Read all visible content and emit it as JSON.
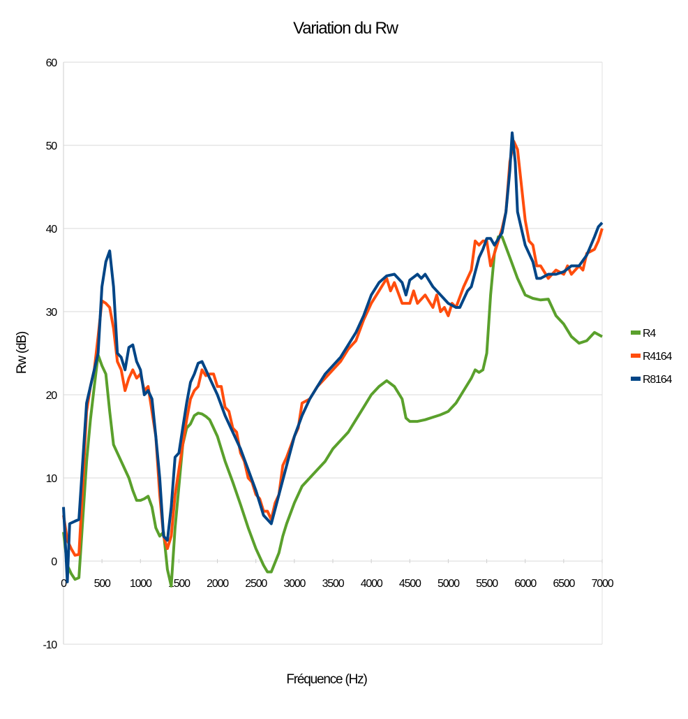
{
  "chart_data": {
    "type": "line",
    "title": "Variation du Rw",
    "xlabel": "Fréquence (Hz)",
    "ylabel": "Rw (dB)",
    "xlim": [
      0,
      7000
    ],
    "ylim": [
      -10,
      60
    ],
    "xticks": [
      0,
      500,
      1000,
      1500,
      2000,
      2500,
      3000,
      3500,
      4000,
      4500,
      5000,
      5500,
      6000,
      6500,
      7000
    ],
    "yticks": [
      -10,
      0,
      10,
      20,
      30,
      40,
      50,
      60
    ],
    "grid": "horizontal",
    "legend_position": "right",
    "series": [
      {
        "name": "R4",
        "color": "#5aa02c",
        "points": [
          [
            0,
            3.5
          ],
          [
            50,
            -0.5
          ],
          [
            100,
            -1.5
          ],
          [
            150,
            -2.2
          ],
          [
            200,
            -2.0
          ],
          [
            250,
            5
          ],
          [
            300,
            12
          ],
          [
            350,
            17
          ],
          [
            400,
            21
          ],
          [
            450,
            24.8
          ],
          [
            500,
            23.5
          ],
          [
            550,
            22.5
          ],
          [
            600,
            18
          ],
          [
            650,
            14
          ],
          [
            700,
            13
          ],
          [
            750,
            12
          ],
          [
            800,
            11
          ],
          [
            850,
            10
          ],
          [
            900,
            8.5
          ],
          [
            950,
            7.3
          ],
          [
            1000,
            7.3
          ],
          [
            1050,
            7.5
          ],
          [
            1100,
            7.8
          ],
          [
            1150,
            6.5
          ],
          [
            1200,
            4
          ],
          [
            1250,
            3
          ],
          [
            1300,
            3.5
          ],
          [
            1350,
            -1
          ],
          [
            1400,
            -3
          ],
          [
            1450,
            4
          ],
          [
            1500,
            9
          ],
          [
            1550,
            14
          ],
          [
            1600,
            16
          ],
          [
            1650,
            16.5
          ],
          [
            1700,
            17.5
          ],
          [
            1750,
            17.8
          ],
          [
            1800,
            17.7
          ],
          [
            1850,
            17.4
          ],
          [
            1900,
            17
          ],
          [
            1950,
            16
          ],
          [
            2000,
            15
          ],
          [
            2100,
            12
          ],
          [
            2200,
            9.5
          ],
          [
            2300,
            6.8
          ],
          [
            2400,
            4
          ],
          [
            2500,
            1.5
          ],
          [
            2600,
            -0.5
          ],
          [
            2650,
            -1.3
          ],
          [
            2700,
            -1.3
          ],
          [
            2800,
            1
          ],
          [
            2850,
            3
          ],
          [
            2900,
            4.5
          ],
          [
            3000,
            7
          ],
          [
            3100,
            9
          ],
          [
            3200,
            10
          ],
          [
            3300,
            11
          ],
          [
            3400,
            12
          ],
          [
            3500,
            13.5
          ],
          [
            3600,
            14.5
          ],
          [
            3700,
            15.5
          ],
          [
            3800,
            17
          ],
          [
            3900,
            18.5
          ],
          [
            4000,
            20
          ],
          [
            4100,
            21
          ],
          [
            4200,
            21.7
          ],
          [
            4300,
            21
          ],
          [
            4400,
            19.5
          ],
          [
            4450,
            17.2
          ],
          [
            4500,
            16.8
          ],
          [
            4600,
            16.8
          ],
          [
            4700,
            17
          ],
          [
            4800,
            17.3
          ],
          [
            4900,
            17.6
          ],
          [
            5000,
            18
          ],
          [
            5100,
            19
          ],
          [
            5200,
            20.5
          ],
          [
            5300,
            22
          ],
          [
            5350,
            23
          ],
          [
            5400,
            22.7
          ],
          [
            5450,
            23
          ],
          [
            5500,
            25
          ],
          [
            5550,
            32
          ],
          [
            5600,
            37
          ],
          [
            5650,
            39
          ],
          [
            5700,
            39
          ],
          [
            5800,
            36.5
          ],
          [
            5900,
            34
          ],
          [
            6000,
            32
          ],
          [
            6100,
            31.6
          ],
          [
            6200,
            31.4
          ],
          [
            6300,
            31.5
          ],
          [
            6400,
            29.5
          ],
          [
            6500,
            28.5
          ],
          [
            6600,
            27
          ],
          [
            6700,
            26.2
          ],
          [
            6800,
            26.5
          ],
          [
            6900,
            27.5
          ],
          [
            7000,
            27
          ]
        ]
      },
      {
        "name": "R4164",
        "color": "#ff4d0d",
        "points": [
          [
            0,
            5.5
          ],
          [
            50,
            2.5
          ],
          [
            100,
            1.5
          ],
          [
            150,
            0.7
          ],
          [
            200,
            0.8
          ],
          [
            250,
            9
          ],
          [
            300,
            18
          ],
          [
            350,
            21
          ],
          [
            400,
            23
          ],
          [
            450,
            27
          ],
          [
            500,
            31.3
          ],
          [
            550,
            31
          ],
          [
            600,
            30.5
          ],
          [
            650,
            28
          ],
          [
            700,
            24
          ],
          [
            750,
            23
          ],
          [
            800,
            20.5
          ],
          [
            850,
            22
          ],
          [
            900,
            23
          ],
          [
            950,
            22
          ],
          [
            1000,
            22.5
          ],
          [
            1050,
            20.5
          ],
          [
            1100,
            21
          ],
          [
            1150,
            18
          ],
          [
            1200,
            15
          ],
          [
            1250,
            8
          ],
          [
            1300,
            3
          ],
          [
            1350,
            1.5
          ],
          [
            1400,
            3
          ],
          [
            1450,
            8
          ],
          [
            1500,
            11
          ],
          [
            1550,
            14
          ],
          [
            1600,
            17
          ],
          [
            1650,
            19.5
          ],
          [
            1700,
            20.5
          ],
          [
            1750,
            21
          ],
          [
            1800,
            23
          ],
          [
            1850,
            22.3
          ],
          [
            1900,
            22.5
          ],
          [
            1950,
            22.5
          ],
          [
            2000,
            21
          ],
          [
            2050,
            21
          ],
          [
            2100,
            18.5
          ],
          [
            2150,
            18
          ],
          [
            2200,
            16
          ],
          [
            2250,
            15.5
          ],
          [
            2300,
            13
          ],
          [
            2350,
            12
          ],
          [
            2400,
            10
          ],
          [
            2450,
            9.5
          ],
          [
            2500,
            8
          ],
          [
            2550,
            7.5
          ],
          [
            2600,
            6
          ],
          [
            2650,
            6
          ],
          [
            2700,
            5
          ],
          [
            2750,
            7
          ],
          [
            2800,
            8
          ],
          [
            2850,
            11.5
          ],
          [
            2900,
            12.5
          ],
          [
            3000,
            15
          ],
          [
            3050,
            16
          ],
          [
            3100,
            19
          ],
          [
            3200,
            19.5
          ],
          [
            3300,
            21
          ],
          [
            3400,
            22
          ],
          [
            3500,
            23
          ],
          [
            3600,
            24
          ],
          [
            3700,
            25.5
          ],
          [
            3800,
            26.5
          ],
          [
            3900,
            29
          ],
          [
            4000,
            31
          ],
          [
            4100,
            32.5
          ],
          [
            4200,
            34
          ],
          [
            4250,
            32.5
          ],
          [
            4300,
            33.5
          ],
          [
            4400,
            31
          ],
          [
            4500,
            31
          ],
          [
            4550,
            32.5
          ],
          [
            4600,
            31
          ],
          [
            4700,
            32
          ],
          [
            4800,
            30.5
          ],
          [
            4850,
            32
          ],
          [
            4900,
            30
          ],
          [
            4950,
            30.5
          ],
          [
            5000,
            29.5
          ],
          [
            5050,
            31
          ],
          [
            5100,
            30.5
          ],
          [
            5200,
            33
          ],
          [
            5300,
            35
          ],
          [
            5350,
            38.5
          ],
          [
            5400,
            38
          ],
          [
            5450,
            38.5
          ],
          [
            5500,
            38.5
          ],
          [
            5550,
            35.5
          ],
          [
            5600,
            37
          ],
          [
            5700,
            40
          ],
          [
            5750,
            42
          ],
          [
            5800,
            48
          ],
          [
            5850,
            50.5
          ],
          [
            5900,
            49.5
          ],
          [
            6000,
            41
          ],
          [
            6050,
            38.5
          ],
          [
            6100,
            38
          ],
          [
            6150,
            35.5
          ],
          [
            6200,
            35.5
          ],
          [
            6300,
            34
          ],
          [
            6400,
            35
          ],
          [
            6500,
            34.5
          ],
          [
            6550,
            35.5
          ],
          [
            6600,
            34.5
          ],
          [
            6700,
            35.5
          ],
          [
            6750,
            35
          ],
          [
            6800,
            37
          ],
          [
            6900,
            37.5
          ],
          [
            6950,
            38.5
          ],
          [
            7000,
            40
          ]
        ]
      },
      {
        "name": "R8164",
        "color": "#004586",
        "points": [
          [
            0,
            6.5
          ],
          [
            50,
            -2.5
          ],
          [
            80,
            4.5
          ],
          [
            150,
            4.8
          ],
          [
            200,
            5
          ],
          [
            250,
            12
          ],
          [
            300,
            19
          ],
          [
            400,
            23
          ],
          [
            450,
            25
          ],
          [
            500,
            33
          ],
          [
            550,
            36
          ],
          [
            600,
            37.3
          ],
          [
            650,
            33
          ],
          [
            700,
            25
          ],
          [
            750,
            24.5
          ],
          [
            800,
            23
          ],
          [
            850,
            25.7
          ],
          [
            900,
            26
          ],
          [
            950,
            24
          ],
          [
            1000,
            23
          ],
          [
            1050,
            20
          ],
          [
            1100,
            20.5
          ],
          [
            1150,
            19.5
          ],
          [
            1200,
            15
          ],
          [
            1250,
            10
          ],
          [
            1300,
            3
          ],
          [
            1350,
            2.5
          ],
          [
            1400,
            6.5
          ],
          [
            1450,
            12.5
          ],
          [
            1500,
            13
          ],
          [
            1550,
            16
          ],
          [
            1600,
            19
          ],
          [
            1650,
            21.5
          ],
          [
            1700,
            22.5
          ],
          [
            1750,
            23.8
          ],
          [
            1800,
            24
          ],
          [
            1850,
            23
          ],
          [
            1900,
            22
          ],
          [
            2000,
            20
          ],
          [
            2100,
            17.5
          ],
          [
            2200,
            15.5
          ],
          [
            2300,
            13.5
          ],
          [
            2400,
            11
          ],
          [
            2500,
            8.5
          ],
          [
            2600,
            5.5
          ],
          [
            2650,
            5
          ],
          [
            2700,
            4.5
          ],
          [
            2800,
            8
          ],
          [
            2900,
            11.5
          ],
          [
            3000,
            15
          ],
          [
            3100,
            17.5
          ],
          [
            3200,
            19.5
          ],
          [
            3300,
            21
          ],
          [
            3400,
            22.5
          ],
          [
            3500,
            23.5
          ],
          [
            3600,
            24.5
          ],
          [
            3700,
            26
          ],
          [
            3800,
            27.5
          ],
          [
            3900,
            29.5
          ],
          [
            4000,
            32
          ],
          [
            4100,
            33.5
          ],
          [
            4200,
            34.3
          ],
          [
            4300,
            34.5
          ],
          [
            4400,
            33.5
          ],
          [
            4450,
            32
          ],
          [
            4500,
            33.8
          ],
          [
            4600,
            34.5
          ],
          [
            4650,
            34
          ],
          [
            4700,
            34.5
          ],
          [
            4800,
            33
          ],
          [
            4900,
            32
          ],
          [
            5000,
            31
          ],
          [
            5100,
            30.5
          ],
          [
            5150,
            30.5
          ],
          [
            5250,
            32.5
          ],
          [
            5300,
            33
          ],
          [
            5400,
            36.5
          ],
          [
            5450,
            37.5
          ],
          [
            5500,
            38.8
          ],
          [
            5550,
            38.8
          ],
          [
            5600,
            38
          ],
          [
            5700,
            39.5
          ],
          [
            5750,
            42
          ],
          [
            5800,
            47
          ],
          [
            5830,
            51.5
          ],
          [
            5870,
            48
          ],
          [
            5900,
            42
          ],
          [
            6000,
            38
          ],
          [
            6100,
            36
          ],
          [
            6150,
            34
          ],
          [
            6200,
            34
          ],
          [
            6300,
            34.5
          ],
          [
            6400,
            34.5
          ],
          [
            6500,
            34.8
          ],
          [
            6600,
            35.5
          ],
          [
            6700,
            35.5
          ],
          [
            6800,
            36.8
          ],
          [
            6900,
            39
          ],
          [
            6950,
            40.2
          ],
          [
            7000,
            40.7
          ]
        ]
      }
    ]
  }
}
